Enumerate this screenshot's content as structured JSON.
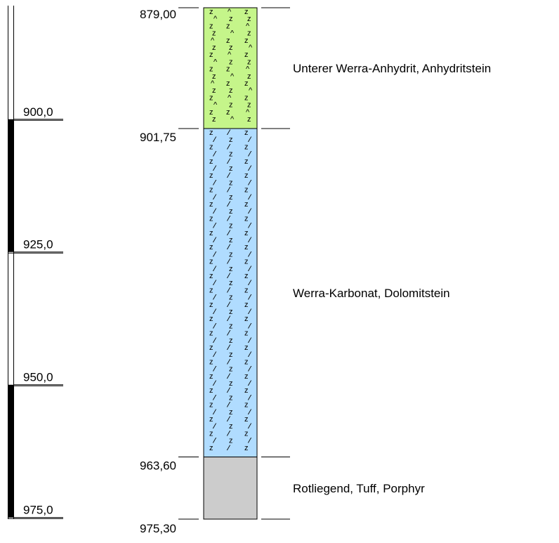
{
  "depth_scale": {
    "ticks": [
      {
        "value": 900,
        "label": "900,0"
      },
      {
        "value": 925,
        "label": "925,0"
      },
      {
        "value": 950,
        "label": "950,0"
      },
      {
        "value": 975,
        "label": "975,0"
      }
    ],
    "solid_bars": [
      [
        900,
        925
      ],
      [
        950,
        975
      ]
    ]
  },
  "column": {
    "top": 879.0,
    "bottom": 975.3,
    "top_label": "879,00",
    "bottom_label": "975,30"
  },
  "layers": [
    {
      "name": "anhydrite",
      "top": 879.0,
      "bottom": 901.75,
      "bottom_label": "901,75",
      "description": "Unterer Werra-Anhydrit, Anhydritstein",
      "fill": "#c5f58a",
      "pattern": "anhydrite"
    },
    {
      "name": "dolomite",
      "top": 901.75,
      "bottom": 963.6,
      "bottom_label": "963,60",
      "description": "Werra-Karbonat, Dolomitstein",
      "fill": "#b0dcff",
      "pattern": "dolomite"
    },
    {
      "name": "tuff",
      "top": 963.6,
      "bottom": 975.3,
      "bottom_label": "975,30",
      "description": "Rotliegend, Tuff, Porphyr",
      "fill": "#cccccc",
      "pattern": "none"
    }
  ]
}
